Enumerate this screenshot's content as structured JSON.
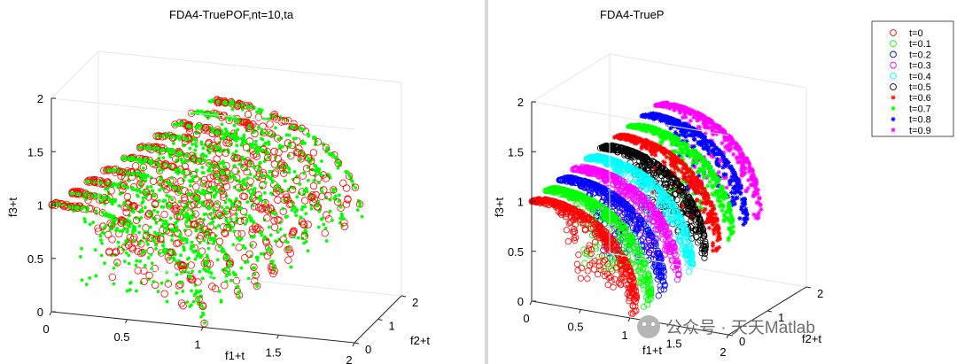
{
  "chart_data": [
    {
      "type": "scatter",
      "view": "3d",
      "title": "FDA4-TruePOF,nt=10,ta",
      "xlabel": "f1+t",
      "ylabel": "f2+t",
      "zlabel": "f3+t",
      "xlim": [
        0,
        2
      ],
      "ylim": [
        0,
        2
      ],
      "zlim": [
        0,
        2
      ],
      "xticks": [
        "0",
        "0.5",
        "1",
        "1.5",
        "2"
      ],
      "yticks": [
        "0",
        "1",
        "2"
      ],
      "zticks": [
        "0",
        "0.5",
        "1",
        "1.5",
        "2"
      ],
      "grid": false,
      "series": [
        {
          "marker": "o",
          "color": "#ff0000",
          "t_values": [
            0,
            0.1,
            0.2,
            0.3,
            0.4,
            0.5,
            0.6,
            0.7,
            0.8,
            0.9
          ],
          "shape": "spherical front f1^2+f2^2+f3^2=1 shifted by t"
        },
        {
          "marker": ".",
          "color": "#00ff00",
          "t_values": [
            0,
            0.1,
            0.2,
            0.3,
            0.4,
            0.5,
            0.6,
            0.7,
            0.8,
            0.9
          ],
          "shape": "spherical front f1^2+f2^2+f3^2=1 shifted by t"
        }
      ]
    },
    {
      "type": "scatter",
      "view": "3d",
      "title": "FDA4-TrueP",
      "xlabel": "f1+t",
      "ylabel": "f2+t",
      "zlabel": "f3+t",
      "xlim": [
        0,
        2
      ],
      "ylim": [
        0,
        2
      ],
      "zlim": [
        0,
        2
      ],
      "xticks": [
        "0",
        "0.5",
        "1",
        "1.5",
        "2"
      ],
      "yticks": [
        "0",
        "1",
        "2"
      ],
      "zticks": [
        "0",
        "0.5",
        "1",
        "1.5",
        "2"
      ],
      "grid": false,
      "legend_position": "top-right",
      "series": [
        {
          "name": "t=0",
          "t": 0,
          "marker": "o",
          "color": "#ff0000"
        },
        {
          "name": "t=0.1",
          "t": 0.1,
          "marker": "o",
          "color": "#00ff00"
        },
        {
          "name": "t=0.2",
          "t": 0.2,
          "marker": "o",
          "color": "#0000ff"
        },
        {
          "name": "t=0.3",
          "t": 0.3,
          "marker": "o",
          "color": "#ff00ff"
        },
        {
          "name": "t=0.4",
          "t": 0.4,
          "marker": "o",
          "color": "#00ffff"
        },
        {
          "name": "t=0.5",
          "t": 0.5,
          "marker": "o",
          "color": "#000000"
        },
        {
          "name": "t=0.6",
          "t": 0.6,
          "marker": "*",
          "color": "#ff0000"
        },
        {
          "name": "t=0.7",
          "t": 0.7,
          "marker": "*",
          "color": "#00ff00"
        },
        {
          "name": "t=0.8",
          "t": 0.8,
          "marker": "*",
          "color": "#0000ff"
        },
        {
          "name": "t=0.9",
          "t": 0.9,
          "marker": "*",
          "color": "#ff00ff"
        }
      ]
    }
  ],
  "watermark": {
    "text": "公众号 · 天天Matlab"
  }
}
